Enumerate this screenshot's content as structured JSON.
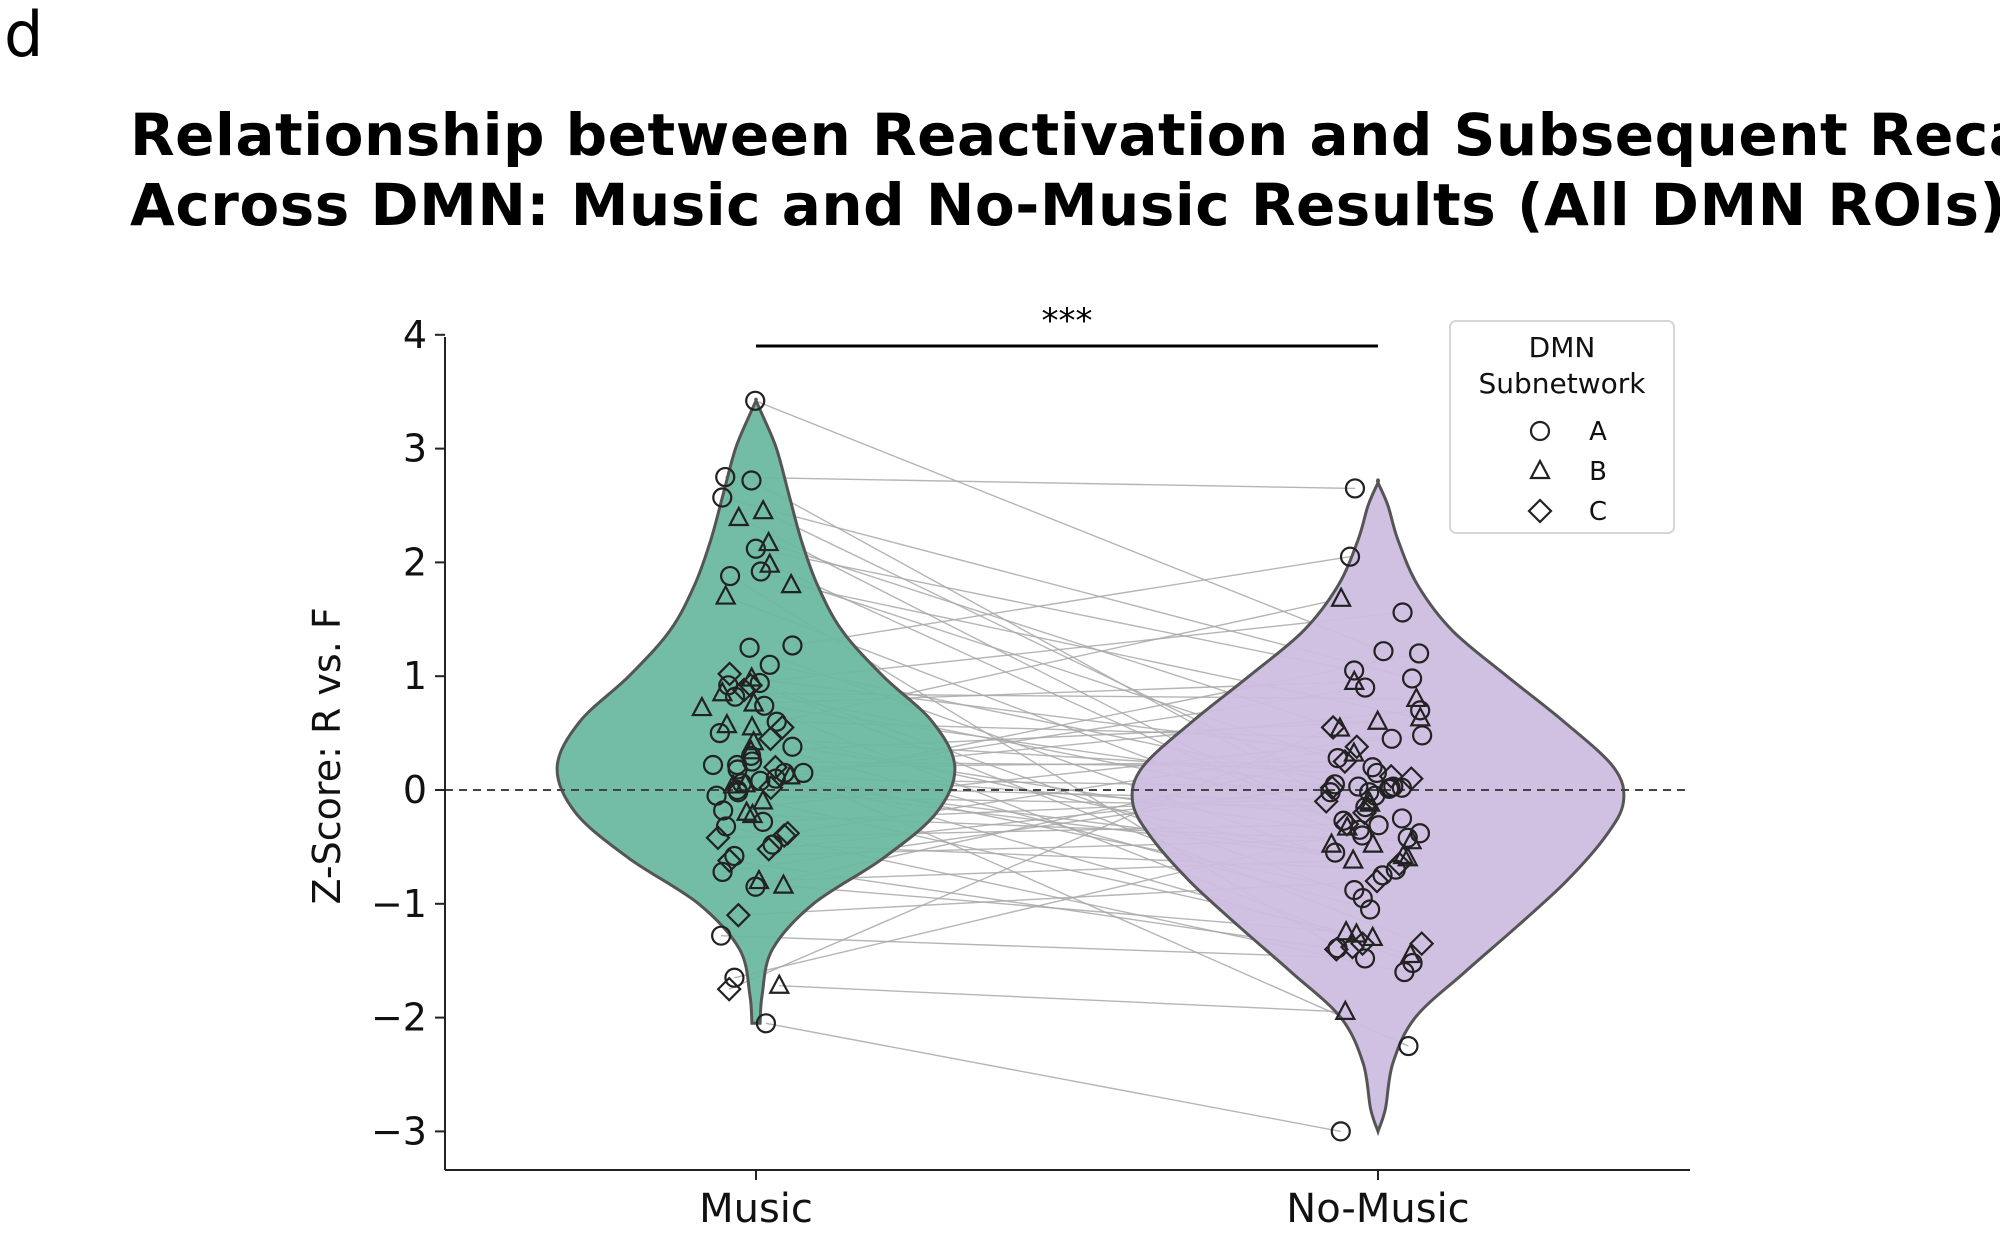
{
  "panel_label": "d",
  "chart_data": {
    "type": "violin",
    "title": [
      "Relationship between Reactivation and Subsequent Recall",
      "Across DMN: Music and No-Music Results (All DMN ROIs)"
    ],
    "xlabel": "",
    "ylabel": "Z-Score: R vs. F",
    "categories": [
      "Music",
      "No-Music"
    ],
    "ylim": [
      -3.3,
      4.0
    ],
    "yticks": [
      -3,
      -2,
      -1,
      0,
      1,
      2,
      3,
      4
    ],
    "ytick_labels": [
      "−3",
      "−2",
      "−1",
      "0",
      "1",
      "2",
      "3",
      "4"
    ],
    "reference_line": {
      "y": 0,
      "style": "dashed"
    },
    "significance": {
      "label": "***",
      "between": [
        "Music",
        "No-Music"
      ]
    },
    "colors": {
      "Music": "#6bb8a0",
      "No-Music": "#cdbde0",
      "paired_lines": "#a9a9a9"
    },
    "legend": {
      "title": [
        "DMN",
        "Subnetwork"
      ],
      "placement": "top-right",
      "entries": [
        {
          "label": "A",
          "marker": "circle"
        },
        {
          "label": "B",
          "marker": "triangle"
        },
        {
          "label": "C",
          "marker": "diamond"
        }
      ]
    },
    "violins": {
      "Music": {
        "range": [
          -2.05,
          3.42
        ],
        "profile": [
          [
            -2.05,
            0.02
          ],
          [
            -1.8,
            0.03
          ],
          [
            -1.4,
            0.08
          ],
          [
            -1.0,
            0.28
          ],
          [
            -0.6,
            0.62
          ],
          [
            -0.2,
            0.88
          ],
          [
            0.2,
            0.97
          ],
          [
            0.6,
            0.86
          ],
          [
            1.0,
            0.62
          ],
          [
            1.4,
            0.42
          ],
          [
            1.8,
            0.3
          ],
          [
            2.2,
            0.22
          ],
          [
            2.6,
            0.16
          ],
          [
            3.0,
            0.1
          ],
          [
            3.3,
            0.03
          ],
          [
            3.42,
            0.0
          ]
        ]
      },
      "No-Music": {
        "range": [
          -3.0,
          2.7
        ],
        "profile": [
          [
            -3.0,
            0.0
          ],
          [
            -2.8,
            0.03
          ],
          [
            -2.4,
            0.06
          ],
          [
            -2.0,
            0.15
          ],
          [
            -1.6,
            0.35
          ],
          [
            -1.2,
            0.56
          ],
          [
            -0.8,
            0.76
          ],
          [
            -0.4,
            0.92
          ],
          [
            -0.1,
            0.99
          ],
          [
            0.2,
            0.95
          ],
          [
            0.6,
            0.75
          ],
          [
            1.0,
            0.52
          ],
          [
            1.4,
            0.3
          ],
          [
            1.8,
            0.16
          ],
          [
            2.2,
            0.08
          ],
          [
            2.5,
            0.04
          ],
          [
            2.7,
            0.0
          ]
        ]
      }
    },
    "pairs": [
      {
        "m": 3.42,
        "n": 1.22,
        "s": "A"
      },
      {
        "m": 2.75,
        "n": 2.65,
        "s": "A"
      },
      {
        "m": 2.72,
        "n": -0.31,
        "s": "A"
      },
      {
        "m": 2.57,
        "n": 0.98,
        "s": "A"
      },
      {
        "m": 2.45,
        "n": -0.12,
        "s": "B"
      },
      {
        "m": 2.39,
        "n": -0.58,
        "s": "B"
      },
      {
        "m": 2.17,
        "n": 0.54,
        "s": "B"
      },
      {
        "m": 2.12,
        "n": 1.05,
        "s": "A"
      },
      {
        "m": 1.98,
        "n": -0.33,
        "s": "B"
      },
      {
        "m": 1.92,
        "n": 0.15,
        "s": "A"
      },
      {
        "m": 1.88,
        "n": -1.39,
        "s": "A"
      },
      {
        "m": 1.8,
        "n": 0.63,
        "s": "B"
      },
      {
        "m": 1.7,
        "n": -0.48,
        "s": "B"
      },
      {
        "m": 1.27,
        "n": 2.05,
        "s": "A"
      },
      {
        "m": 1.25,
        "n": -0.75,
        "s": "A"
      },
      {
        "m": 1.1,
        "n": 0.03,
        "s": "A"
      },
      {
        "m": 1.02,
        "n": -1.35,
        "s": "C"
      },
      {
        "m": 0.98,
        "n": 0.32,
        "s": "B"
      },
      {
        "m": 0.94,
        "n": -0.95,
        "s": "A"
      },
      {
        "m": 0.92,
        "n": 1.56,
        "s": "A"
      },
      {
        "m": 0.88,
        "n": -0.2,
        "s": "C"
      },
      {
        "m": 0.85,
        "n": 0.8,
        "s": "B"
      },
      {
        "m": 0.82,
        "n": -1.52,
        "s": "A"
      },
      {
        "m": 0.76,
        "n": 0.95,
        "s": "B"
      },
      {
        "m": 0.74,
        "n": -0.02,
        "s": "A"
      },
      {
        "m": 0.6,
        "n": 0.45,
        "s": "A"
      },
      {
        "m": 0.57,
        "n": -0.62,
        "s": "B"
      },
      {
        "m": 0.55,
        "n": 1.68,
        "s": "B"
      },
      {
        "m": 0.5,
        "n": -1.05,
        "s": "A"
      },
      {
        "m": 0.45,
        "n": 0.12,
        "s": "C"
      },
      {
        "m": 0.38,
        "n": -0.4,
        "s": "A"
      },
      {
        "m": 0.34,
        "n": 0.6,
        "s": "B"
      },
      {
        "m": 0.3,
        "n": -2.25,
        "s": "A"
      },
      {
        "m": 0.25,
        "n": 0.2,
        "s": "A"
      },
      {
        "m": 0.22,
        "n": -0.88,
        "s": "A"
      },
      {
        "m": 0.2,
        "n": 0.25,
        "s": "C"
      },
      {
        "m": 0.18,
        "n": -0.25,
        "s": "A"
      },
      {
        "m": 0.15,
        "n": 0.7,
        "s": "A"
      },
      {
        "m": 0.12,
        "n": -1.45,
        "s": "B"
      },
      {
        "m": 0.1,
        "n": 0.02,
        "s": "A"
      },
      {
        "m": 0.08,
        "n": -0.55,
        "s": "A"
      },
      {
        "m": 0.06,
        "n": 0.9,
        "s": "A"
      },
      {
        "m": 0.04,
        "n": -0.1,
        "s": "B"
      },
      {
        "m": 0.02,
        "n": -0.65,
        "s": "C"
      },
      {
        "m": 0.0,
        "n": 1.2,
        "s": "A"
      },
      {
        "m": -0.05,
        "n": -0.15,
        "s": "A"
      },
      {
        "m": -0.1,
        "n": -1.3,
        "s": "B"
      },
      {
        "m": -0.18,
        "n": 0.48,
        "s": "A"
      },
      {
        "m": -0.22,
        "n": -0.45,
        "s": "B"
      },
      {
        "m": -0.28,
        "n": -0.05,
        "s": "A"
      },
      {
        "m": -0.32,
        "n": -1.6,
        "s": "A"
      },
      {
        "m": -0.38,
        "n": 0.38,
        "s": "C"
      },
      {
        "m": -0.42,
        "n": -0.3,
        "s": "C"
      },
      {
        "m": -0.48,
        "n": -0.7,
        "s": "A"
      },
      {
        "m": -0.52,
        "n": 0.1,
        "s": "C"
      },
      {
        "m": -0.58,
        "n": -0.42,
        "s": "A"
      },
      {
        "m": -0.62,
        "n": -1.4,
        "s": "C"
      },
      {
        "m": -0.72,
        "n": 0.05,
        "s": "A"
      },
      {
        "m": -0.8,
        "n": -0.6,
        "s": "B"
      },
      {
        "m": -0.84,
        "n": -1.25,
        "s": "B"
      },
      {
        "m": -0.85,
        "n": 0.28,
        "s": "A"
      },
      {
        "m": -1.1,
        "n": -0.8,
        "s": "C"
      },
      {
        "m": -1.28,
        "n": -1.48,
        "s": "A"
      },
      {
        "m": -1.65,
        "n": -0.35,
        "s": "A"
      },
      {
        "m": -1.72,
        "n": -1.95,
        "s": "B"
      },
      {
        "m": -1.75,
        "n": 0.55,
        "s": "C"
      },
      {
        "m": -2.05,
        "n": -3.0,
        "s": "A"
      }
    ],
    "extra_points": {
      "Music": [
        {
          "y": 0.05,
          "s": "B"
        },
        {
          "y": 0.22,
          "s": "A"
        },
        {
          "y": 0.42,
          "s": "B"
        },
        {
          "y": -0.2,
          "s": "B"
        },
        {
          "y": 0.72,
          "s": "B"
        },
        {
          "y": -0.4,
          "s": "C"
        },
        {
          "y": 0.92,
          "s": "C"
        },
        {
          "y": 0.55,
          "s": "C"
        },
        {
          "y": -0.02,
          "s": "A"
        },
        {
          "y": 0.15,
          "s": "A"
        }
      ],
      "No-Music": [
        {
          "y": 0.02,
          "s": "A"
        },
        {
          "y": 0.03,
          "s": "A"
        },
        {
          "y": -1.38,
          "s": "C"
        },
        {
          "y": -1.35,
          "s": "C"
        },
        {
          "y": -0.48,
          "s": "B"
        },
        {
          "y": -0.38,
          "s": "A"
        },
        {
          "y": 0.02,
          "s": "C"
        },
        {
          "y": -0.02,
          "s": "A"
        },
        {
          "y": -0.27,
          "s": "A"
        },
        {
          "y": -1.27,
          "s": "B"
        },
        {
          "y": -0.1,
          "s": "C"
        },
        {
          "y": 0.01,
          "s": "A"
        }
      ]
    }
  }
}
